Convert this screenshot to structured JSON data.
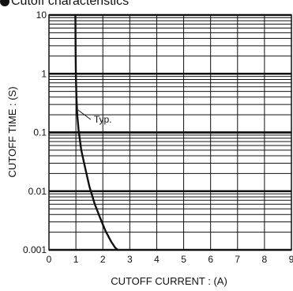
{
  "header": {
    "title": "Cutoff characteristics"
  },
  "chart_data": {
    "type": "line",
    "title": "Cutoff characteristics",
    "xlabel": "CUTOFF  CURRENT : (A)",
    "ylabel": "CUTOFF  TIME : (S)",
    "xlim": [
      0,
      9
    ],
    "ylim": [
      0.001,
      10
    ],
    "y_scale": "log",
    "grid": true,
    "x_ticks": [
      "0",
      "1",
      "2",
      "3",
      "4",
      "5",
      "6",
      "7",
      "8",
      "9"
    ],
    "y_ticks": [
      "0.001",
      "0.01",
      "0.1",
      "1",
      "10"
    ],
    "annotations": [
      {
        "text": "Typ.",
        "x": 1.08,
        "y": 0.2
      }
    ],
    "series": [
      {
        "name": "Typ.",
        "x": [
          0.98,
          0.99,
          1.0,
          1.02,
          1.05,
          1.1,
          1.2,
          1.35,
          1.5,
          1.7,
          1.9,
          2.1,
          2.3,
          2.45,
          2.55
        ],
        "y": [
          10,
          2,
          0.9,
          0.4,
          0.2,
          0.11,
          0.05,
          0.024,
          0.012,
          0.006,
          0.0035,
          0.0021,
          0.0014,
          0.0011,
          0.001
        ]
      }
    ]
  }
}
